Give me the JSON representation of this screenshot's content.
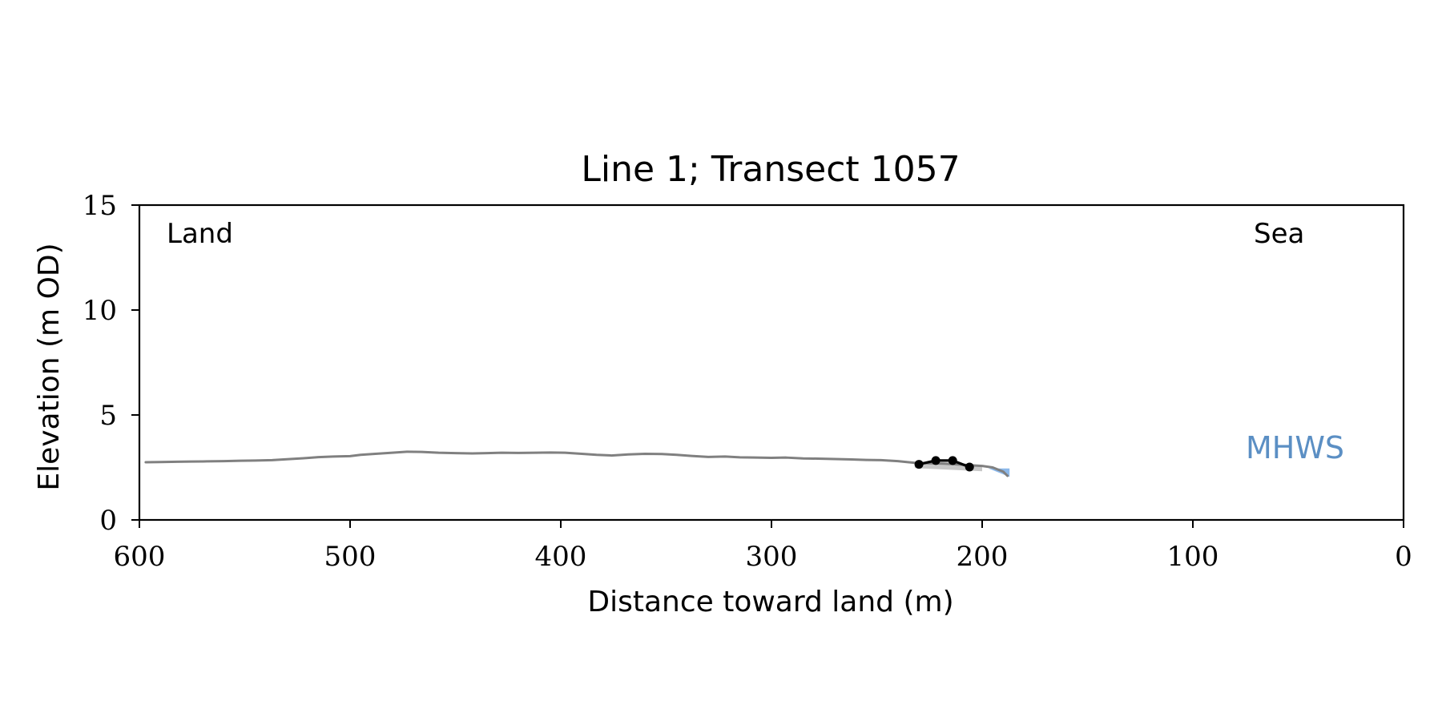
{
  "chart_data": {
    "type": "line",
    "title": "Line 1; Transect 1057",
    "xlabel": "Distance toward land (m)",
    "ylabel": "Elevation (m OD)",
    "xlim": [
      600,
      0
    ],
    "ylim": [
      0,
      15
    ],
    "x_ticks": [
      600,
      500,
      400,
      300,
      200,
      100,
      0
    ],
    "x_tick_labels": [
      "600",
      "500",
      "400",
      "300",
      "200",
      "100",
      "0"
    ],
    "y_ticks": [
      0,
      5,
      10,
      15
    ],
    "y_tick_labels": [
      "0",
      "5",
      "10",
      "15"
    ],
    "grid": false,
    "annotations": {
      "land": "Land",
      "sea": "Sea",
      "mhws": "MHWS"
    },
    "colors": {
      "profile": "#808080",
      "points": "#000000",
      "water": "#7fb0e8",
      "mhws_label": "#5b8fc4",
      "fill": "#c8c8c8"
    },
    "series": [
      {
        "values": [
          [
            597,
            2.75
          ],
          [
            590,
            2.76
          ],
          [
            582,
            2.77
          ],
          [
            575,
            2.78
          ],
          [
            568,
            2.79
          ],
          [
            560,
            2.8
          ],
          [
            552,
            2.82
          ],
          [
            545,
            2.83
          ],
          [
            537,
            2.85
          ],
          [
            530,
            2.89
          ],
          [
            522,
            2.94
          ],
          [
            515,
            2.99
          ],
          [
            508,
            3.02
          ],
          [
            500,
            3.04
          ],
          [
            495,
            3.1
          ],
          [
            488,
            3.15
          ],
          [
            480,
            3.2
          ],
          [
            473,
            3.25
          ],
          [
            466,
            3.24
          ],
          [
            458,
            3.2
          ],
          [
            450,
            3.18
          ],
          [
            442,
            3.17
          ],
          [
            435,
            3.18
          ],
          [
            428,
            3.2
          ],
          [
            420,
            3.19
          ],
          [
            412,
            3.2
          ],
          [
            405,
            3.21
          ],
          [
            398,
            3.2
          ],
          [
            390,
            3.15
          ],
          [
            383,
            3.1
          ],
          [
            376,
            3.07
          ],
          [
            368,
            3.12
          ],
          [
            360,
            3.15
          ],
          [
            352,
            3.14
          ],
          [
            345,
            3.1
          ],
          [
            338,
            3.05
          ],
          [
            330,
            3.0
          ],
          [
            322,
            3.02
          ],
          [
            315,
            2.98
          ],
          [
            308,
            2.97
          ],
          [
            300,
            2.96
          ],
          [
            293,
            2.97
          ],
          [
            285,
            2.93
          ],
          [
            278,
            2.92
          ],
          [
            270,
            2.9
          ],
          [
            262,
            2.88
          ],
          [
            255,
            2.86
          ],
          [
            248,
            2.85
          ],
          [
            240,
            2.8
          ],
          [
            232,
            2.72
          ],
          [
            225,
            2.7
          ],
          [
            218,
            2.68
          ],
          [
            212,
            2.65
          ],
          [
            205,
            2.6
          ],
          [
            200,
            2.57
          ],
          [
            195,
            2.5
          ],
          [
            190,
            2.3
          ],
          [
            188,
            2.1
          ]
        ]
      },
      {
        "values": [
          [
            230,
            2.65
          ],
          [
            222,
            2.83
          ],
          [
            214,
            2.83
          ],
          [
            206,
            2.52
          ]
        ]
      }
    ],
    "mhws_level": 2.45
  }
}
